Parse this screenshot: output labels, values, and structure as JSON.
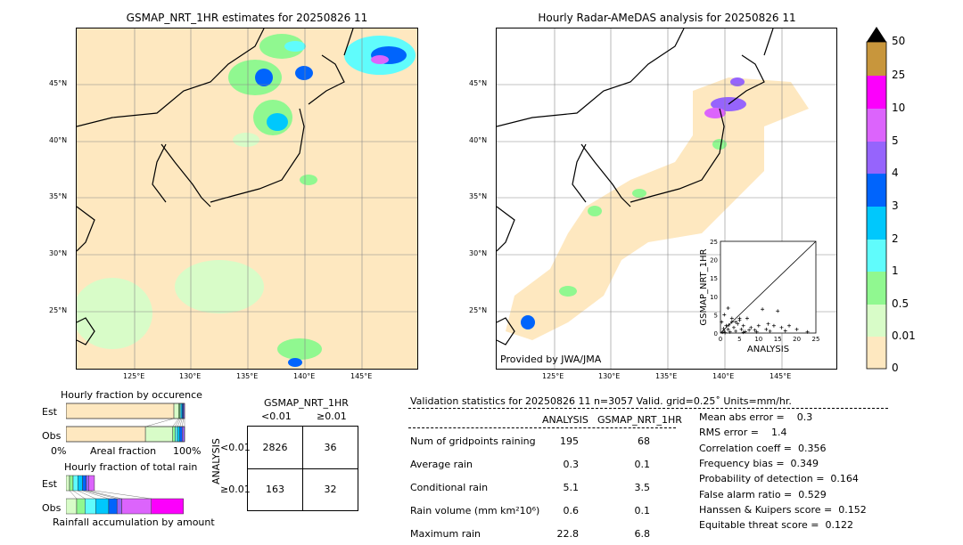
{
  "left_map": {
    "title": "GSMAP_NRT_1HR estimates for 20250826 11"
  },
  "right_map": {
    "title": "Hourly Radar-AMeDAS analysis for 20250826 11",
    "credit": "Provided by JWA/JMA"
  },
  "lon_ticks": [
    "125°E",
    "130°E",
    "135°E",
    "140°E",
    "145°E"
  ],
  "lat_ticks": [
    "45°N",
    "40°N",
    "35°N",
    "30°N",
    "25°N"
  ],
  "colorbar": {
    "labels": [
      "50",
      "25",
      "10",
      "5",
      "4",
      "3",
      "2",
      "1",
      "0.5",
      "0.01",
      "0"
    ],
    "colors": [
      "#c8963c",
      "#fc00fc",
      "#dc64fc",
      "#9664fc",
      "#0064fc",
      "#00c8fc",
      "#60fcfc",
      "#90f890",
      "#d8fcc8",
      "#fee8c0"
    ],
    "extend_color": "#000000"
  },
  "chart_data": [
    {
      "type": "scatter",
      "title": "",
      "xlabel": "ANALYSIS",
      "ylabel": "GSMAP_NRT_1HR",
      "xlim": [
        0,
        25
      ],
      "ylim": [
        0,
        25
      ],
      "ticks": [
        "0",
        "5",
        "10",
        "15",
        "20",
        "25"
      ],
      "points": [
        [
          0.5,
          0.2
        ],
        [
          1,
          0.5
        ],
        [
          1.5,
          2
        ],
        [
          2,
          1
        ],
        [
          2.5,
          0.3
        ],
        [
          3,
          3
        ],
        [
          3.5,
          1.5
        ],
        [
          4,
          0.5
        ],
        [
          4.5,
          2.5
        ],
        [
          5,
          3.5
        ],
        [
          5.5,
          1
        ],
        [
          6,
          2
        ],
        [
          6.5,
          0.4
        ],
        [
          7,
          4
        ],
        [
          8,
          1.5
        ],
        [
          9,
          0.8
        ],
        [
          10,
          2
        ],
        [
          11,
          6.5
        ],
        [
          12,
          1
        ],
        [
          13,
          0.5
        ],
        [
          14,
          2
        ],
        [
          15,
          6
        ],
        [
          16,
          1.5
        ],
        [
          17,
          0.6
        ],
        [
          18,
          2
        ],
        [
          20,
          1
        ],
        [
          22.8,
          0.3
        ],
        [
          1,
          5
        ],
        [
          0.3,
          3
        ],
        [
          2,
          6.8
        ],
        [
          3,
          4
        ],
        [
          4,
          3
        ],
        [
          5,
          4
        ],
        [
          1.2,
          0.1
        ],
        [
          0.8,
          1.2
        ],
        [
          2.2,
          2.2
        ],
        [
          6,
          0.2
        ],
        [
          7.5,
          0.8
        ],
        [
          9.5,
          0.3
        ],
        [
          12.5,
          2.5
        ]
      ]
    },
    {
      "type": "bar",
      "title": "Hourly fraction by occurence",
      "xlabel": "Areal fraction",
      "x_ticks": [
        "0%",
        "100%"
      ],
      "rows": [
        "Est",
        "Obs"
      ],
      "series": [
        {
          "name": "Est",
          "values": [
            0.91,
            0.04,
            0.01,
            0.01,
            0.01,
            0.01,
            0.01
          ]
        },
        {
          "name": "Obs",
          "values": [
            0.67,
            0.23,
            0.02,
            0.02,
            0.02,
            0.02,
            0.02
          ]
        }
      ]
    },
    {
      "type": "bar",
      "title": "Hourly fraction of total rain",
      "xlabel": "Rainfall accumulation by amount",
      "rows": [
        "Est",
        "Obs"
      ],
      "series": [
        {
          "name": "Est",
          "values": [
            0.03,
            0.03,
            0.04,
            0.04,
            0.03,
            0.02,
            0.05
          ]
        },
        {
          "name": "Obs",
          "values": [
            0.09,
            0.07,
            0.09,
            0.11,
            0.07,
            0.04,
            0.25,
            0.27
          ]
        }
      ]
    }
  ],
  "contingency": {
    "title": "GSMAP_NRT_1HR",
    "cols": [
      "<0.01",
      "≥0.01"
    ],
    "rows": [
      "<0.01",
      "≥0.01"
    ],
    "ylabel": "ANALYSIS",
    "cells": [
      [
        "2826",
        "36"
      ],
      [
        "163",
        "32"
      ]
    ]
  },
  "stats": {
    "header": "Validation statistics for 20250826 11  n=3057 Valid. grid=0.25˚ Units=mm/hr.",
    "col1": "ANALYSIS",
    "col2": "GSMAP_NRT_1HR",
    "rows": [
      {
        "label": "Num of gridpoints raining",
        "a": "195",
        "g": "68"
      },
      {
        "label": "Average rain",
        "a": "0.3",
        "g": "0.1"
      },
      {
        "label": "Conditional rain",
        "a": "5.1",
        "g": "3.5"
      },
      {
        "label": "Rain volume (mm km²10⁶)",
        "a": "0.6",
        "g": "0.1"
      },
      {
        "label": "Maximum rain",
        "a": "22.8",
        "g": "6.8"
      }
    ],
    "scores": [
      "Mean abs error =    0.3",
      "RMS error =    1.4",
      "Correlation coeff =  0.356",
      "Frequency bias =  0.349",
      "Probability of detection =  0.164",
      "False alarm ratio =  0.529",
      "Hanssen & Kuipers score =  0.152",
      "Equitable threat score =  0.122"
    ]
  }
}
